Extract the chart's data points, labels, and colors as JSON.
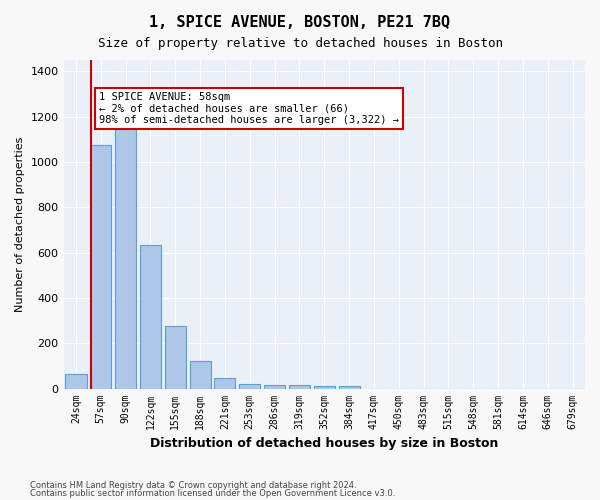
{
  "title": "1, SPICE AVENUE, BOSTON, PE21 7BQ",
  "subtitle": "Size of property relative to detached houses in Boston",
  "xlabel": "Distribution of detached houses by size in Boston",
  "ylabel": "Number of detached properties",
  "bar_color": "#aec6e8",
  "bar_edge_color": "#5a9fd4",
  "background_color": "#eaf0f8",
  "grid_color": "#ffffff",
  "annotation_box_color": "#cc0000",
  "property_line_color": "#cc0000",
  "bins": [
    "24sqm",
    "57sqm",
    "90sqm",
    "122sqm",
    "155sqm",
    "188sqm",
    "221sqm",
    "253sqm",
    "286sqm",
    "319sqm",
    "352sqm",
    "384sqm",
    "417sqm",
    "450sqm",
    "483sqm",
    "515sqm",
    "548sqm",
    "581sqm",
    "614sqm",
    "646sqm",
    "679sqm"
  ],
  "values": [
    65,
    1075,
    1175,
    635,
    275,
    120,
    45,
    20,
    15,
    15,
    10,
    10,
    0,
    0,
    0,
    0,
    0,
    0,
    0,
    0,
    0
  ],
  "ylim": [
    0,
    1450
  ],
  "yticks": [
    0,
    200,
    400,
    600,
    800,
    1000,
    1200,
    1400
  ],
  "property_sqm": 58,
  "property_bin_index": 1,
  "annotation_title": "1 SPICE AVENUE: 58sqm",
  "annotation_line1": "← 2% of detached houses are smaller (66)",
  "annotation_line2": "98% of semi-detached houses are larger (3,322) →",
  "footnote1": "Contains HM Land Registry data © Crown copyright and database right 2024.",
  "footnote2": "Contains public sector information licensed under the Open Government Licence v3.0."
}
